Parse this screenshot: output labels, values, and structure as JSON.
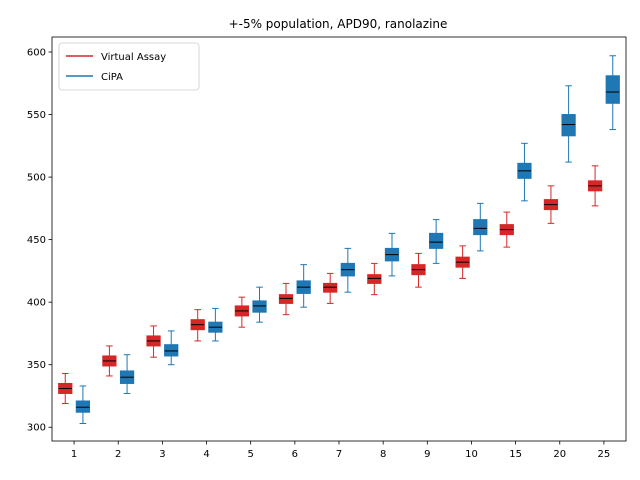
{
  "chart_data": {
    "type": "box",
    "title": "+-5% population, APD90, ranolazine",
    "xlabel": "",
    "ylabel": "",
    "categories": [
      "1",
      "2",
      "3",
      "4",
      "5",
      "6",
      "7",
      "8",
      "9",
      "10",
      "15",
      "20",
      "25"
    ],
    "ylim": [
      289,
      612
    ],
    "yticks": [
      300,
      350,
      400,
      450,
      500,
      550,
      600
    ],
    "grid": false,
    "legend": {
      "position": "upper-left"
    },
    "series": [
      {
        "name": "Virtual Assay",
        "color": "#d62728",
        "boxes": [
          {
            "whislo": 319,
            "q1": 327,
            "med": 331,
            "q3": 335,
            "whishi": 343
          },
          {
            "whislo": 341,
            "q1": 349,
            "med": 353,
            "q3": 357,
            "whishi": 365
          },
          {
            "whislo": 356,
            "q1": 365,
            "med": 369,
            "q3": 373,
            "whishi": 381
          },
          {
            "whislo": 369,
            "q1": 378,
            "med": 382,
            "q3": 386,
            "whishi": 394
          },
          {
            "whislo": 380,
            "q1": 389,
            "med": 393,
            "q3": 397,
            "whishi": 404
          },
          {
            "whislo": 390,
            "q1": 399,
            "med": 403,
            "q3": 406,
            "whishi": 415
          },
          {
            "whislo": 399,
            "q1": 408,
            "med": 412,
            "q3": 415,
            "whishi": 423
          },
          {
            "whislo": 406,
            "q1": 415,
            "med": 419,
            "q3": 422,
            "whishi": 431
          },
          {
            "whislo": 412,
            "q1": 422,
            "med": 426,
            "q3": 430,
            "whishi": 439
          },
          {
            "whislo": 419,
            "q1": 428,
            "med": 432,
            "q3": 436,
            "whishi": 445
          },
          {
            "whislo": 444,
            "q1": 454,
            "med": 458,
            "q3": 462,
            "whishi": 472
          },
          {
            "whislo": 463,
            "q1": 474,
            "med": 478,
            "q3": 482,
            "whishi": 493
          },
          {
            "whislo": 477,
            "q1": 489,
            "med": 493,
            "q3": 497,
            "whishi": 509
          }
        ]
      },
      {
        "name": "CiPA",
        "color": "#1f77b4",
        "boxes": [
          {
            "whislo": 303,
            "q1": 312,
            "med": 316,
            "q3": 321,
            "whishi": 333
          },
          {
            "whislo": 327,
            "q1": 335,
            "med": 340,
            "q3": 345,
            "whishi": 358
          },
          {
            "whislo": 350,
            "q1": 357,
            "med": 361,
            "q3": 366,
            "whishi": 377
          },
          {
            "whislo": 369,
            "q1": 376,
            "med": 380,
            "q3": 384,
            "whishi": 395
          },
          {
            "whislo": 384,
            "q1": 392,
            "med": 397,
            "q3": 401,
            "whishi": 412
          },
          {
            "whislo": 396,
            "q1": 407,
            "med": 412,
            "q3": 417,
            "whishi": 430
          },
          {
            "whislo": 408,
            "q1": 421,
            "med": 426,
            "q3": 431,
            "whishi": 443
          },
          {
            "whislo": 421,
            "q1": 433,
            "med": 438,
            "q3": 443,
            "whishi": 455
          },
          {
            "whislo": 431,
            "q1": 443,
            "med": 448,
            "q3": 455,
            "whishi": 466
          },
          {
            "whislo": 441,
            "q1": 454,
            "med": 459,
            "q3": 466,
            "whishi": 479
          },
          {
            "whislo": 481,
            "q1": 499,
            "med": 505,
            "q3": 511,
            "whishi": 527
          },
          {
            "whislo": 512,
            "q1": 533,
            "med": 542,
            "q3": 550,
            "whishi": 573
          },
          {
            "whislo": 538,
            "q1": 559,
            "med": 568,
            "q3": 581,
            "whishi": 597
          }
        ]
      }
    ]
  }
}
